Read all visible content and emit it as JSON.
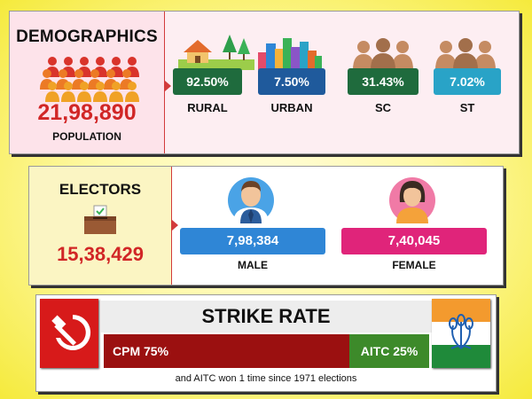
{
  "demographics": {
    "title": "DEMOGRAPHICS",
    "population_value": "21,98,890",
    "population_label": "POPULATION",
    "stats": [
      {
        "key": "rural",
        "value": "92.50%",
        "label": "RURAL",
        "color": "#1f6b3d",
        "icon": "rural-house-icon"
      },
      {
        "key": "urban",
        "value": "7.50%",
        "label": "URBAN",
        "color": "#1f5a9c",
        "icon": "city-buildings-icon"
      },
      {
        "key": "sc",
        "value": "31.43%",
        "label": "SC",
        "color": "#1f6b3d",
        "icon": "people-group-icon"
      },
      {
        "key": "st",
        "value": "7.02%",
        "label": "ST",
        "color": "#29a3c7",
        "icon": "people-group-icon"
      }
    ]
  },
  "electors": {
    "title": "ELECTORS",
    "total": "15,38,429",
    "male": {
      "value": "7,98,384",
      "label": "MALE",
      "color": "#2f86d6"
    },
    "female": {
      "value": "7,40,045",
      "label": "FEMALE",
      "color": "#e0247a"
    }
  },
  "strike_rate": {
    "title": "STRIKE RATE",
    "cpm": {
      "label": "CPM 75%",
      "color": "#9b1010"
    },
    "aitc": {
      "label": "AITC 25%",
      "color": "#3d8a2a"
    },
    "note": "and AITC won 1 time since 1971 elections"
  }
}
